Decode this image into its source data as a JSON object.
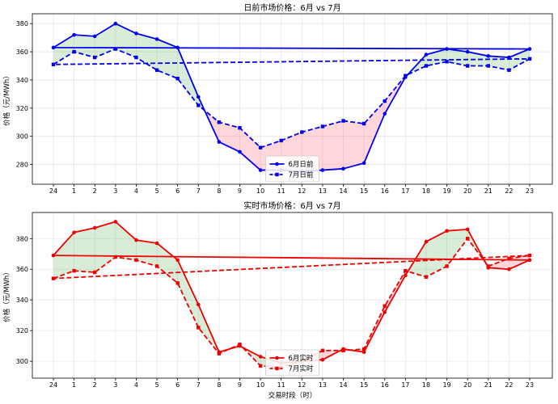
{
  "chart_data": [
    {
      "type": "line",
      "title": "日前市场价格：6月 vs 7月",
      "ylabel": "价格（元/MWh）",
      "xlabel": "",
      "x": [
        "24",
        "1",
        "2",
        "3",
        "4",
        "5",
        "6",
        "7",
        "8",
        "9",
        "10",
        "11",
        "12",
        "13",
        "14",
        "15",
        "16",
        "17",
        "18",
        "19",
        "20",
        "21",
        "22",
        "23"
      ],
      "ylim": [
        266,
        387
      ],
      "yticks": [
        280,
        300,
        320,
        340,
        360,
        380
      ],
      "grid": true,
      "legend": "lower-center",
      "color": "#0000ee",
      "series": [
        {
          "name": "6月日前",
          "style": "solid",
          "marker": "circle",
          "values": [
            363,
            372,
            371,
            380,
            373,
            369,
            363,
            328,
            296,
            289,
            276,
            276,
            275,
            276,
            277,
            281,
            316,
            342,
            358,
            362,
            360,
            357,
            356,
            362
          ]
        },
        {
          "name": "7月日前",
          "style": "dashed",
          "marker": "square",
          "values": [
            351,
            360,
            356,
            362,
            356,
            347,
            341,
            322,
            310,
            306,
            292,
            297,
            303,
            307,
            311,
            309,
            325,
            343,
            350,
            353,
            350,
            350,
            347,
            355
          ]
        }
      ]
    },
    {
      "type": "line",
      "title": "实时市场价格：6月 vs 7月",
      "ylabel": "价格（元/MWh）",
      "xlabel": "交易时段（时）",
      "x": [
        "24",
        "1",
        "2",
        "3",
        "4",
        "5",
        "6",
        "7",
        "8",
        "9",
        "10",
        "11",
        "12",
        "13",
        "14",
        "15",
        "16",
        "17",
        "18",
        "19",
        "20",
        "21",
        "22",
        "23"
      ],
      "ylim": [
        289,
        397
      ],
      "yticks": [
        300,
        320,
        340,
        360,
        380
      ],
      "grid": true,
      "legend": "lower-center",
      "color": "#ee0000",
      "series": [
        {
          "name": "6月实时",
          "style": "solid",
          "marker": "circle",
          "values": [
            369,
            384,
            387,
            391,
            379,
            377,
            366,
            337,
            306,
            310,
            303,
            299,
            300,
            301,
            308,
            306,
            332,
            356,
            378,
            385,
            386,
            361,
            360,
            366
          ]
        },
        {
          "name": "7月实时",
          "style": "dashed",
          "marker": "square",
          "values": [
            354,
            359,
            358,
            368,
            366,
            362,
            351,
            322,
            305,
            311,
            297,
            296,
            300,
            307,
            307,
            308,
            336,
            359,
            355,
            362,
            380,
            362,
            367,
            369
          ]
        }
      ]
    }
  ]
}
